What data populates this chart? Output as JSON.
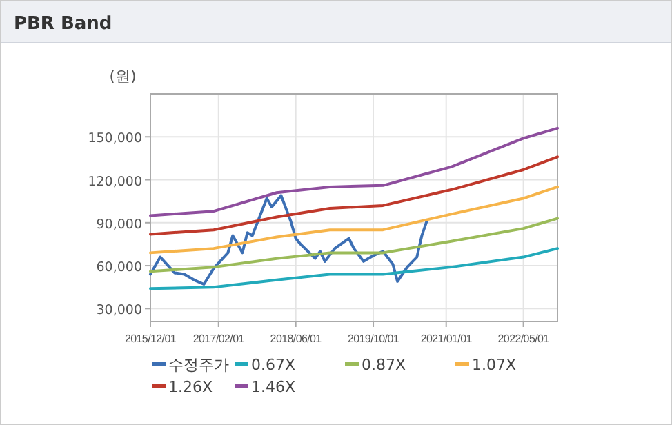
{
  "chart_data": {
    "type": "line",
    "title": "PBR Band",
    "ylabel": "(원)",
    "xlim": [
      "2015-12-01",
      "2022-12-01"
    ],
    "xticks": [
      {
        "value": "2015-12-01",
        "label": "2015/12/01"
      },
      {
        "value": "2017-02-01",
        "label": "2017/02/01"
      },
      {
        "value": "2018-06-01",
        "label": "2018/06/01"
      },
      {
        "value": "2019-10-01",
        "label": "2019/10/01"
      },
      {
        "value": "2021-01-01",
        "label": "2021/01/01"
      },
      {
        "value": "2022-05-01",
        "label": "2022/05/01"
      }
    ],
    "ylim": [
      21000,
      180000
    ],
    "yticks": [
      {
        "value": 30000,
        "label": "30,000"
      },
      {
        "value": 60000,
        "label": "60,000"
      },
      {
        "value": 90000,
        "label": "90,000"
      },
      {
        "value": 120000,
        "label": "120,000"
      },
      {
        "value": 150000,
        "label": "150,000"
      }
    ],
    "grid": true,
    "legend": "bottom",
    "marker": "none",
    "line_style": "solid",
    "series": [
      {
        "name": "수정주가",
        "color": "#3c6fb4",
        "x": [
          "2015-12",
          "2016-02",
          "2016-05",
          "2016-07",
          "2016-09",
          "2016-11",
          "2017-01",
          "2017-04",
          "2017-05",
          "2017-07",
          "2017-08",
          "2017-09",
          "2017-12",
          "2018-01",
          "2018-03",
          "2018-05",
          "2018-06",
          "2018-07",
          "2018-10",
          "2018-11",
          "2018-12",
          "2019-02",
          "2019-05",
          "2019-06",
          "2019-08",
          "2019-10",
          "2019-12",
          "2020-02",
          "2020-03",
          "2020-05",
          "2020-07",
          "2020-08",
          "2020-09"
        ],
        "values": [
          54000,
          66000,
          55000,
          54000,
          50000,
          47000,
          58000,
          69000,
          81000,
          69000,
          83000,
          81000,
          107000,
          101000,
          109000,
          91000,
          79000,
          75000,
          65000,
          70000,
          63000,
          72000,
          79000,
          72000,
          63000,
          67000,
          70000,
          61000,
          49000,
          59000,
          66000,
          81000,
          91000
        ]
      },
      {
        "name": "0.67X",
        "color": "#22aabb",
        "x": [
          "2015-12",
          "2017-01",
          "2018-02",
          "2019-01",
          "2019-12",
          "2021-02",
          "2022-05",
          "2022-12"
        ],
        "values": [
          44000,
          45000,
          50000,
          54000,
          54000,
          59000,
          66000,
          72000
        ]
      },
      {
        "name": "0.87X",
        "color": "#9bbb59",
        "x": [
          "2015-12",
          "2017-01",
          "2018-02",
          "2019-01",
          "2019-12",
          "2021-02",
          "2022-05",
          "2022-12"
        ],
        "values": [
          56000,
          59000,
          65000,
          69000,
          69000,
          77000,
          86000,
          93000
        ]
      },
      {
        "name": "1.07X",
        "color": "#f6b44a",
        "x": [
          "2015-12",
          "2017-01",
          "2018-02",
          "2019-01",
          "2019-12",
          "2021-02",
          "2022-05",
          "2022-12"
        ],
        "values": [
          69000,
          72000,
          80000,
          85000,
          85000,
          96000,
          107000,
          115000
        ]
      },
      {
        "name": "1.26X",
        "color": "#c0392b",
        "x": [
          "2015-12",
          "2017-01",
          "2018-02",
          "2019-01",
          "2019-12",
          "2021-02",
          "2022-05",
          "2022-12"
        ],
        "values": [
          82000,
          85000,
          94000,
          100000,
          102000,
          113000,
          127000,
          136000
        ]
      },
      {
        "name": "1.46X",
        "color": "#8e4e9e",
        "x": [
          "2015-12",
          "2017-01",
          "2018-02",
          "2019-01",
          "2019-12",
          "2021-02",
          "2022-05",
          "2022-12"
        ],
        "values": [
          95000,
          98000,
          111000,
          115000,
          116000,
          129000,
          149000,
          156000
        ]
      }
    ]
  }
}
